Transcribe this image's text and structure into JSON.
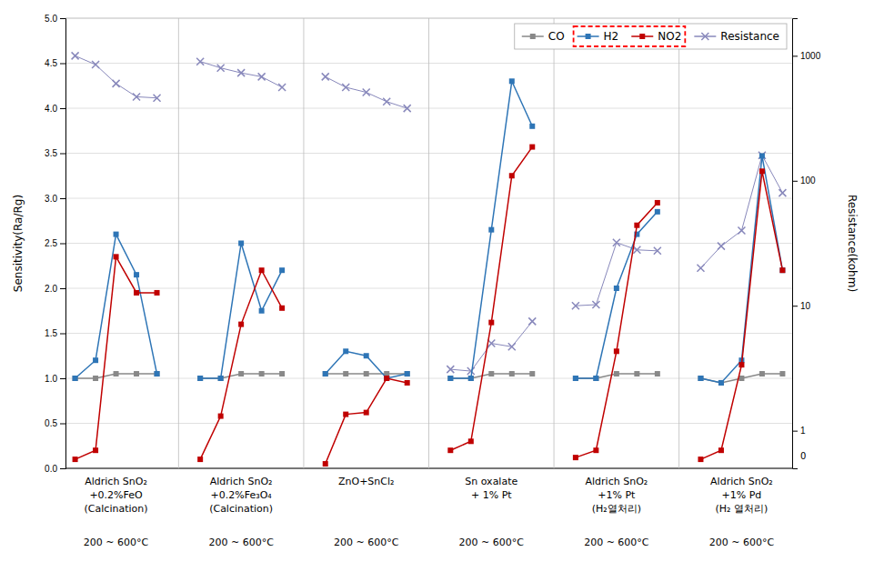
{
  "chart_data": {
    "type": "line",
    "categories": [
      [
        "Aldrich SnO₂",
        "+0.2%FeO",
        "(Calcination)",
        "200 ~ 600°C"
      ],
      [
        "Aldrich SnO₂",
        "+0.2%Fe₃O₄",
        "(Calcination)",
        "200 ~ 600°C"
      ],
      [
        "ZnO+SnCl₂",
        "200 ~ 600°C"
      ],
      [
        "Sn oxalate",
        "+ 1% Pt",
        "200 ~ 600°C"
      ],
      [
        "Aldrich SnO₂",
        "+1% Pt",
        "(H₂열처리)",
        "200 ~ 600°C"
      ],
      [
        "Aldrich SnO₂",
        "+1% Pd",
        "(H₂ 열처리)",
        "200 ~ 600°C"
      ]
    ],
    "series": [
      {
        "name": "CO",
        "color": "#888888",
        "marker": "square",
        "values": [
          [
            1.0,
            1.0,
            1.05,
            1.05,
            1.05
          ],
          [
            1.0,
            1.0,
            1.05,
            1.05,
            1.05
          ],
          [
            1.05,
            1.05,
            1.05,
            1.05,
            1.05
          ],
          [
            1.0,
            1.0,
            1.05,
            1.05,
            1.05
          ],
          [
            1.0,
            1.0,
            1.05,
            1.05,
            1.05
          ],
          [
            1.0,
            0.95,
            1.0,
            1.05,
            1.05
          ]
        ]
      },
      {
        "name": "H2",
        "color": "#2E75B6",
        "marker": "square",
        "values": [
          [
            1.0,
            1.2,
            2.6,
            2.15,
            1.05
          ],
          [
            1.0,
            1.0,
            2.5,
            1.75,
            2.2
          ],
          [
            1.05,
            1.3,
            1.25,
            1.0,
            1.05
          ],
          [
            1.0,
            1.0,
            2.65,
            4.3,
            3.8
          ],
          [
            1.0,
            1.0,
            2.0,
            2.6,
            2.85
          ],
          [
            1.0,
            0.95,
            1.2,
            3.47,
            2.2
          ]
        ]
      },
      {
        "name": "NO2",
        "color": "#C00000",
        "marker": "square",
        "values": [
          [
            0.1,
            0.2,
            2.35,
            1.95,
            1.95
          ],
          [
            0.1,
            0.58,
            1.6,
            2.2,
            1.78
          ],
          [
            0.05,
            0.6,
            0.62,
            1.0,
            0.95
          ],
          [
            0.2,
            0.3,
            1.62,
            3.25,
            3.57
          ],
          [
            0.12,
            0.2,
            1.3,
            2.7,
            2.95
          ],
          [
            0.1,
            0.2,
            1.15,
            3.3,
            2.2
          ]
        ]
      },
      {
        "name": "Resistance",
        "color": "#8888BB",
        "marker": "x",
        "axis": "y2",
        "values": [
          [
            1000,
            850,
            600,
            470,
            460
          ],
          [
            900,
            800,
            730,
            680,
            560
          ],
          [
            680,
            560,
            510,
            430,
            380
          ],
          [
            3.1,
            3.0,
            5.0,
            4.7,
            7.5
          ],
          [
            10.0,
            10.2,
            32.0,
            28.0,
            27.5
          ],
          [
            20.0,
            30.0,
            40.0,
            160.0,
            80.0
          ]
        ]
      }
    ],
    "ylabel": "Sensitivity(Ra/Rg)",
    "y2label": "Resistance(kohm)",
    "ylim": [
      0,
      5
    ],
    "yticks": [
      {
        "value": 0,
        "label": "0.0"
      },
      0.5,
      {
        "value": 1,
        "label": "1.0"
      },
      1.5,
      {
        "value": 2,
        "label": "2.0"
      },
      2.5,
      {
        "value": 3,
        "label": "3.0"
      },
      3.5,
      {
        "value": 4,
        "label": "4.0"
      },
      4.5,
      {
        "value": 5,
        "label": "5.0"
      }
    ],
    "y2lim": [
      0.5,
      2000
    ],
    "y2ticks": [
      1,
      10,
      100,
      1000
    ],
    "log": "y2",
    "grid": true,
    "legend": "upper right",
    "annotations": [
      {
        "text": "0"
      }
    ]
  }
}
